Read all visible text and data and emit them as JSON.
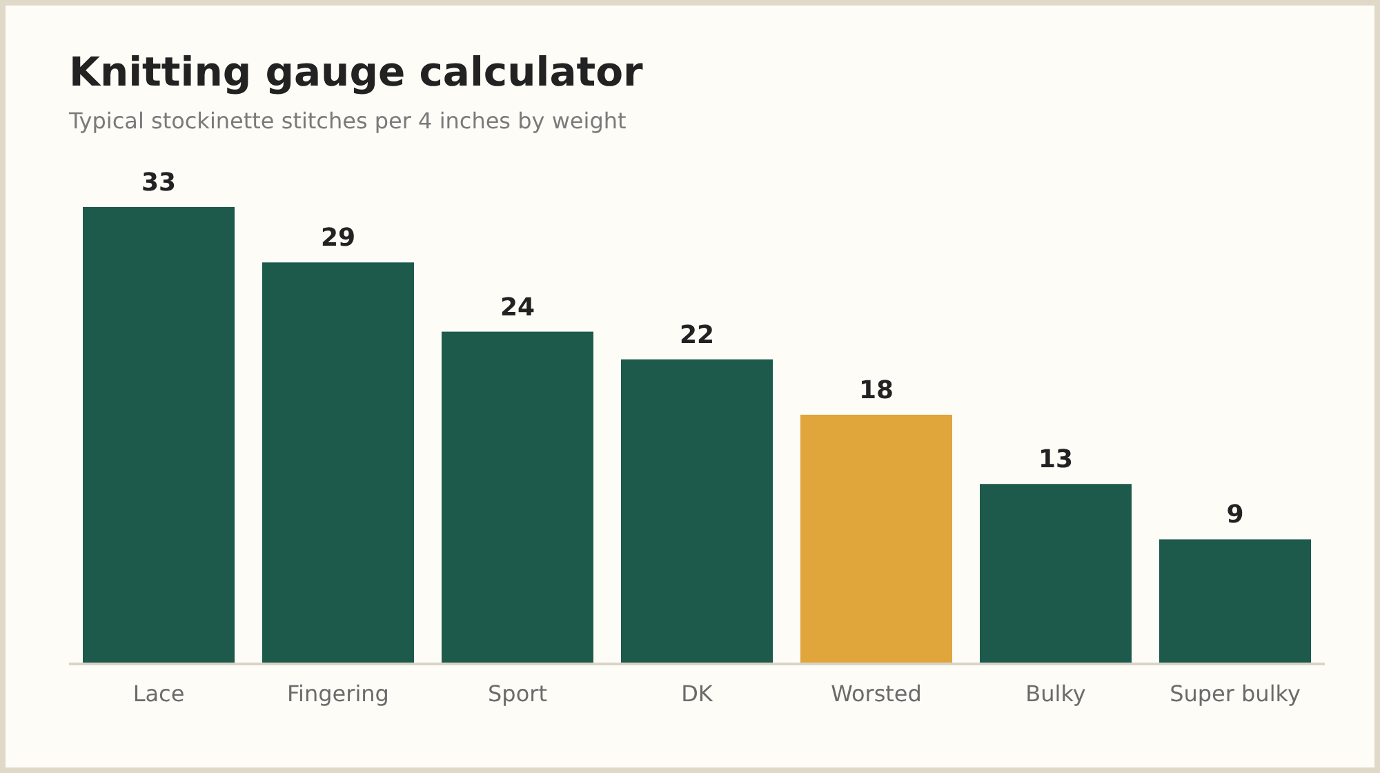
{
  "chart_data": {
    "type": "bar",
    "title": "Knitting gauge calculator",
    "subtitle": "Typical stockinette stitches per 4 inches by weight",
    "categories": [
      "Lace",
      "Fingering",
      "Sport",
      "DK",
      "Worsted",
      "Bulky",
      "Super bulky"
    ],
    "values": [
      33,
      29,
      24,
      22,
      18,
      13,
      9
    ],
    "colors": [
      "#1d5a4b",
      "#1d5a4b",
      "#1d5a4b",
      "#1d5a4b",
      "#e0a53b",
      "#1d5a4b",
      "#1d5a4b"
    ],
    "data_labels": true
  }
}
